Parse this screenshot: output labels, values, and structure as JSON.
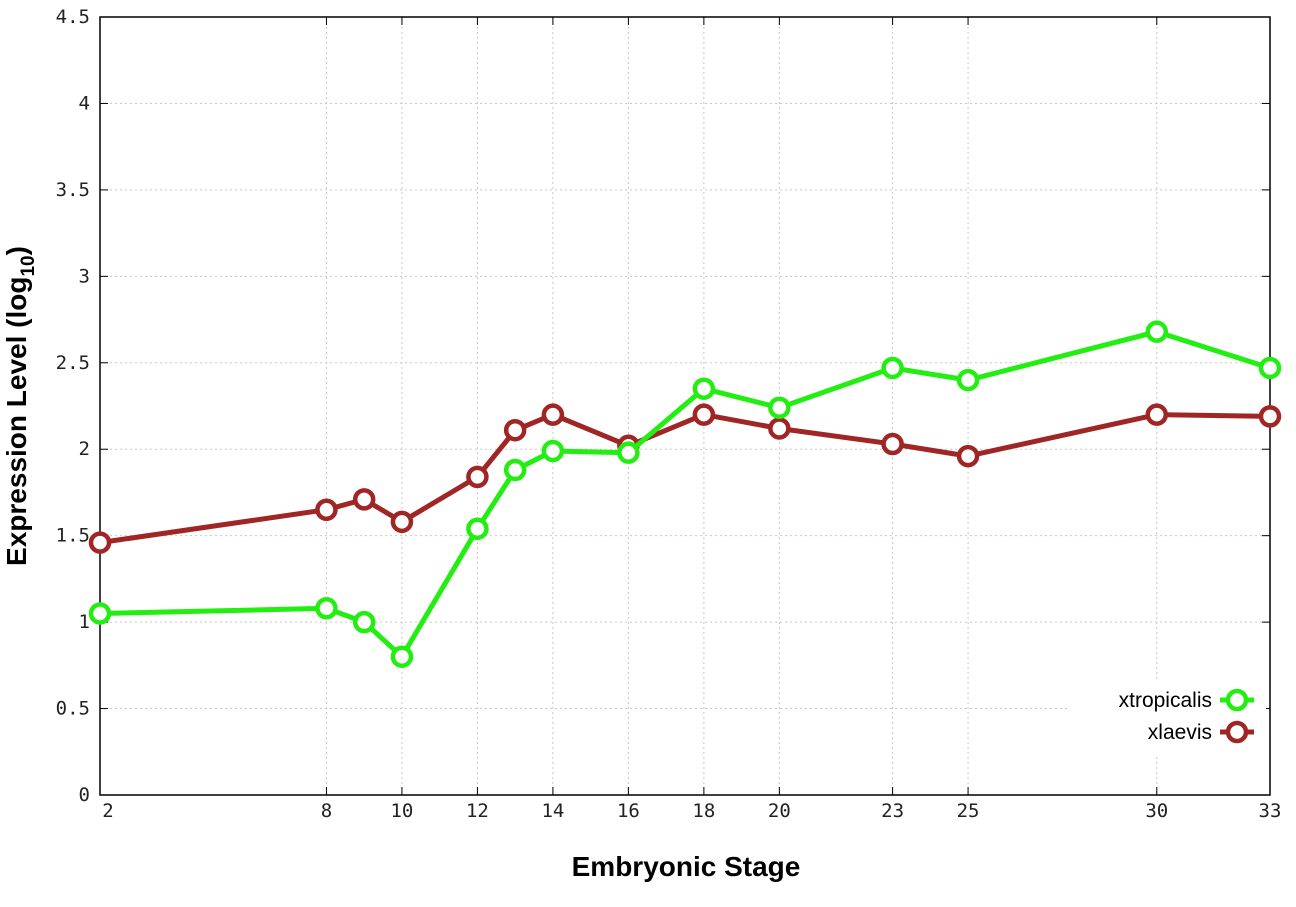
{
  "chart_data": {
    "type": "line",
    "xlabel": "Embryonic Stage",
    "ylabel": {
      "main": "Expression Level (log",
      "sub": "10",
      "close": ")"
    },
    "x_ticks": [
      2,
      8,
      10,
      12,
      14,
      16,
      18,
      20,
      23,
      25,
      30,
      33
    ],
    "y_ticks": [
      "0",
      "0.5",
      "1",
      "1.5",
      "2",
      "2.5",
      "3",
      "3.5",
      "4",
      "4.5"
    ],
    "ylim": [
      0,
      4.5
    ],
    "grid": true,
    "legend_position": "bottom-right",
    "x": [
      2,
      8,
      9,
      10,
      12,
      13,
      14,
      16,
      18,
      20,
      23,
      25,
      30,
      33
    ],
    "series": [
      {
        "name": "xtropicalis",
        "color": "#22ee11",
        "values": [
          1.05,
          1.08,
          1.0,
          0.8,
          1.54,
          1.88,
          1.99,
          1.98,
          2.35,
          2.24,
          2.47,
          2.4,
          2.68,
          2.47
        ]
      },
      {
        "name": "xlaevis",
        "color": "#a02626",
        "values": [
          1.46,
          1.65,
          1.71,
          1.58,
          1.84,
          2.11,
          2.2,
          2.02,
          2.2,
          2.12,
          2.03,
          1.96,
          2.2,
          2.19
        ]
      }
    ]
  }
}
